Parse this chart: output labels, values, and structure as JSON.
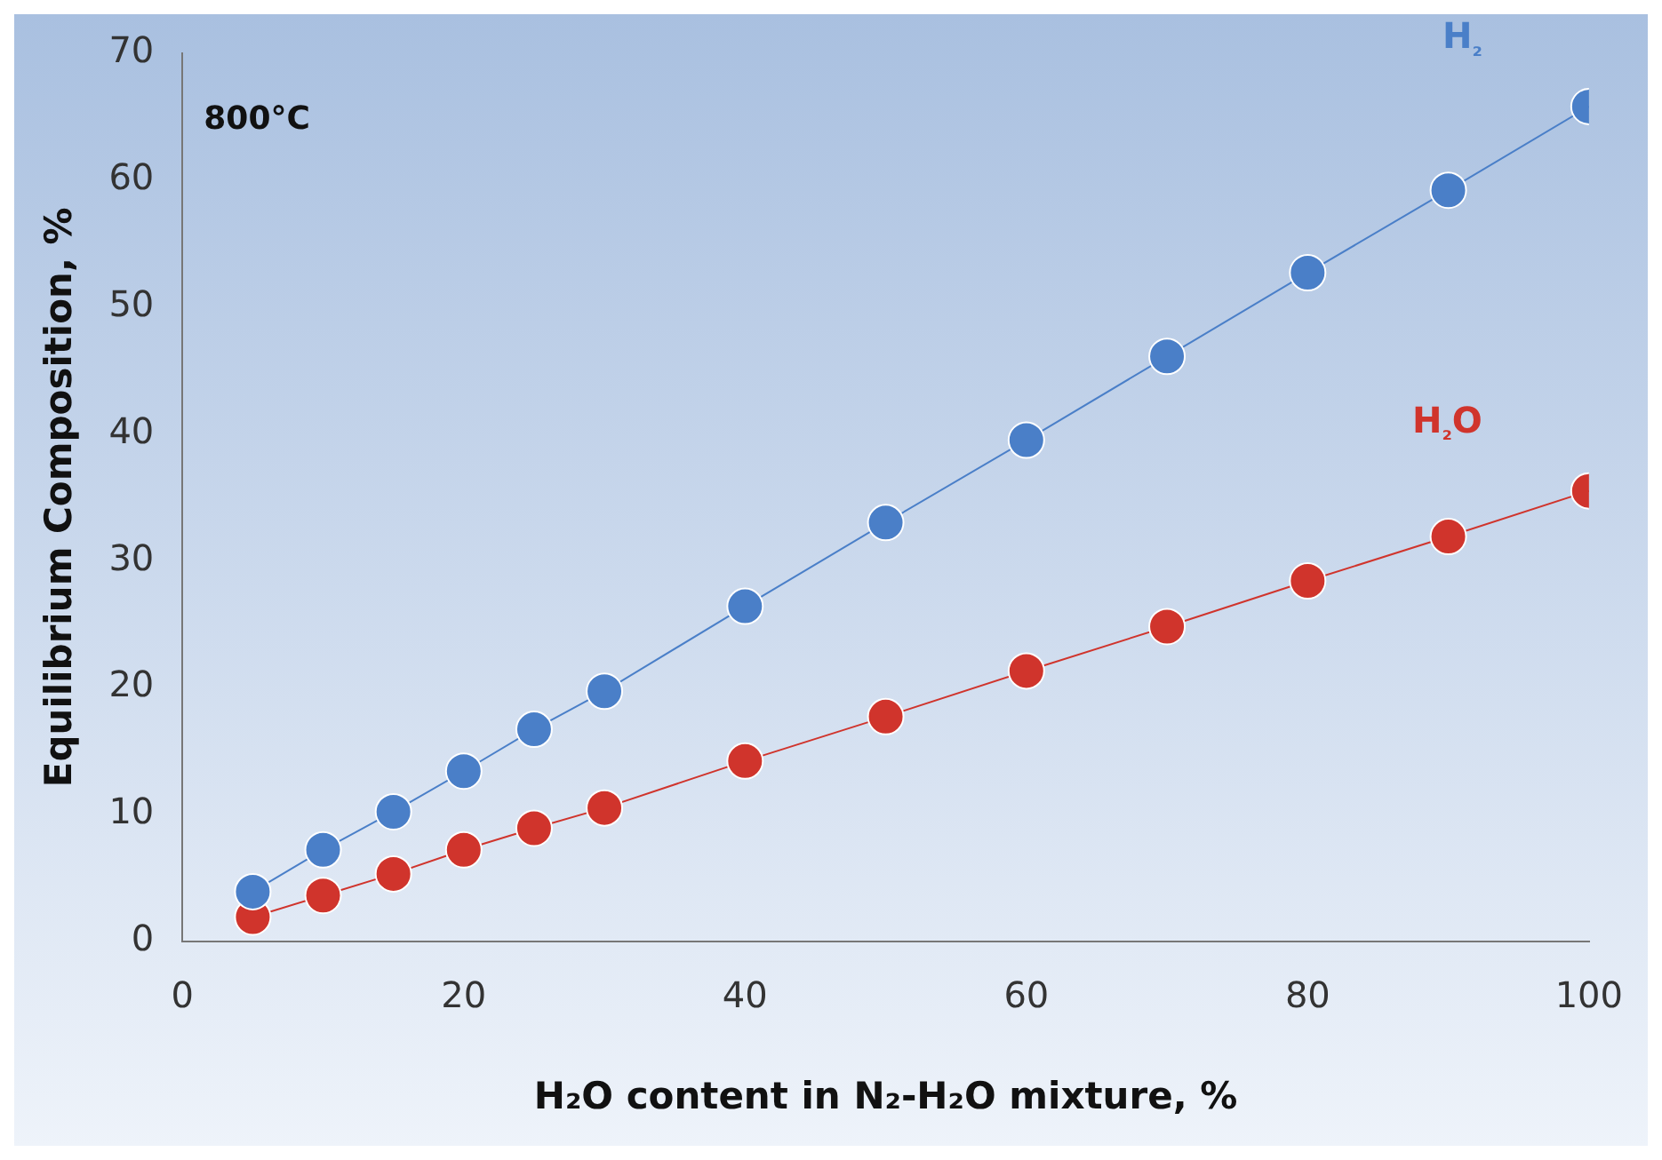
{
  "chart_data": {
    "type": "line",
    "xlabel": "H₂O content in N₂-H₂O mixture, %",
    "ylabel": "Equilibrium Composition, %",
    "annotations": [
      "800°C"
    ],
    "x": [
      5,
      10,
      15,
      20,
      25,
      30,
      40,
      50,
      60,
      70,
      80,
      90,
      100
    ],
    "series": [
      {
        "name": "H₂",
        "color": "#4a7fc8",
        "values": [
          3.9,
          7.2,
          10.2,
          13.4,
          16.7,
          19.7,
          26.4,
          33,
          39.5,
          46.1,
          52.7,
          59.2,
          65.8
        ]
      },
      {
        "name": "H₂O",
        "color": "#d0342c",
        "values": [
          1.9,
          3.6,
          5.3,
          7.2,
          8.9,
          10.5,
          14.2,
          17.7,
          21.3,
          24.8,
          28.4,
          31.9,
          35.5
        ]
      }
    ],
    "xlim": [
      0,
      100
    ],
    "xticks": [
      0,
      20,
      40,
      60,
      80,
      100
    ],
    "ylim": [
      0,
      70
    ],
    "yticks": [
      0,
      10,
      20,
      30,
      40,
      50,
      60,
      70
    ],
    "grid": false,
    "legend": false,
    "marker": "circle",
    "line_style": "solid"
  }
}
